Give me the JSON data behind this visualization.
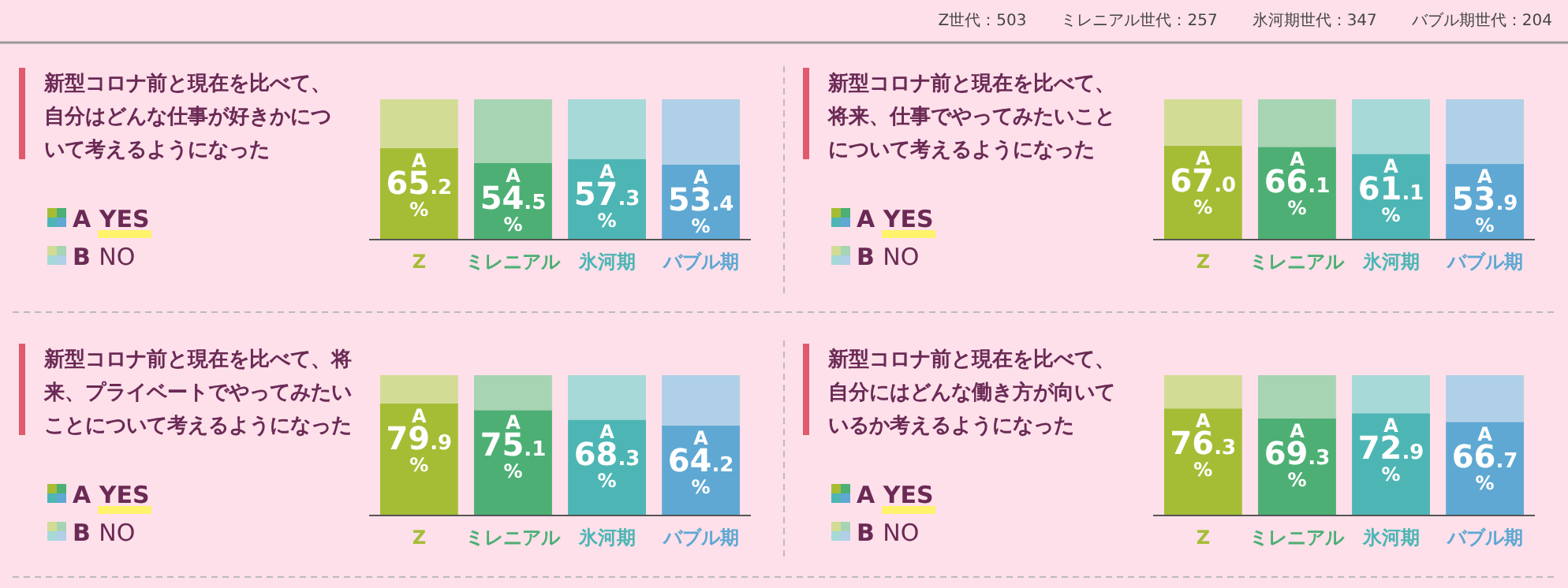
{
  "chart_data": [
    {
      "type": "other",
      "annotations": [
        "Z世代：503",
        "ミレニアル世代：257",
        "氷河期世代：347",
        "バブル期世代：204"
      ]
    },
    {
      "type": "bar",
      "title": "新型コロナ前と現在を比べて、自分はどんな仕事が好きかについて考えるようになった",
      "categories": [
        "Z",
        "ミレニアル",
        "氷河期",
        "バブル期"
      ],
      "stacked": true,
      "ylim": [
        0,
        100
      ],
      "tick_labels": "x",
      "legend": "left",
      "series": [
        {
          "name": "A YES",
          "colors": [
            "#a5bd35",
            "#4daf74",
            "#4db6b4",
            "#5fa8d3"
          ],
          "values": [
            65.2,
            54.5,
            57.3,
            53.4
          ],
          "value_labels": [
            "A 65.2 %",
            "A 54.5 %",
            "A 57.3 %",
            "A 53.4 %"
          ]
        },
        {
          "name": "B NO",
          "colors": [
            "#d3dc94",
            "#a7d4b3",
            "#a6d9d8",
            "#afd0e6"
          ],
          "values": [
            34.8,
            45.5,
            42.7,
            46.6
          ]
        }
      ]
    },
    {
      "type": "bar",
      "title": "新型コロナ前と現在を比べて、将来、仕事でやってみたいことについて考えるようになった",
      "categories": [
        "Z",
        "ミレニアル",
        "氷河期",
        "バブル期"
      ],
      "stacked": true,
      "ylim": [
        0,
        100
      ],
      "tick_labels": "x",
      "legend": "left",
      "series": [
        {
          "name": "A YES",
          "colors": [
            "#a5bd35",
            "#4daf74",
            "#4db6b4",
            "#5fa8d3"
          ],
          "values": [
            67.0,
            66.1,
            61.1,
            53.9
          ],
          "value_labels": [
            "A 67.0 %",
            "A 66.1 %",
            "A 61.1 %",
            "A 53.9 %"
          ]
        },
        {
          "name": "B NO",
          "colors": [
            "#d3dc94",
            "#a7d4b3",
            "#a6d9d8",
            "#afd0e6"
          ],
          "values": [
            33.0,
            33.9,
            38.9,
            46.1
          ]
        }
      ]
    },
    {
      "type": "bar",
      "title": "新型コロナ前と現在を比べて、将来、プライベートでやってみたいことについて考えるようになった",
      "categories": [
        "Z",
        "ミレニアル",
        "氷河期",
        "バブル期"
      ],
      "stacked": true,
      "ylim": [
        0,
        100
      ],
      "tick_labels": "x",
      "legend": "left",
      "series": [
        {
          "name": "A YES",
          "colors": [
            "#a5bd35",
            "#4daf74",
            "#4db6b4",
            "#5fa8d3"
          ],
          "values": [
            79.9,
            75.1,
            68.3,
            64.2
          ],
          "value_labels": [
            "A 79.9 %",
            "A 75.1 %",
            "A 68.3 %",
            "A 64.2 %"
          ]
        },
        {
          "name": "B NO",
          "colors": [
            "#d3dc94",
            "#a7d4b3",
            "#a6d9d8",
            "#afd0e6"
          ],
          "values": [
            20.1,
            24.9,
            31.7,
            35.8
          ]
        }
      ]
    },
    {
      "type": "bar",
      "title": "新型コロナ前と現在を比べて、自分にはどんな働き方が向いているか考えるようになった",
      "categories": [
        "Z",
        "ミレニアル",
        "氷河期",
        "バブル期"
      ],
      "stacked": true,
      "ylim": [
        0,
        100
      ],
      "tick_labels": "x",
      "legend": "left",
      "series": [
        {
          "name": "A YES",
          "colors": [
            "#a5bd35",
            "#4daf74",
            "#4db6b4",
            "#5fa8d3"
          ],
          "values": [
            76.3,
            69.3,
            72.9,
            66.7
          ],
          "value_labels": [
            "A 76.3 %",
            "A 69.3 %",
            "A 72.9 %",
            "A 66.7 %"
          ]
        },
        {
          "name": "B NO",
          "colors": [
            "#d3dc94",
            "#a7d4b3",
            "#a6d9d8",
            "#afd0e6"
          ],
          "values": [
            23.7,
            30.7,
            27.1,
            33.3
          ]
        }
      ]
    }
  ]
}
